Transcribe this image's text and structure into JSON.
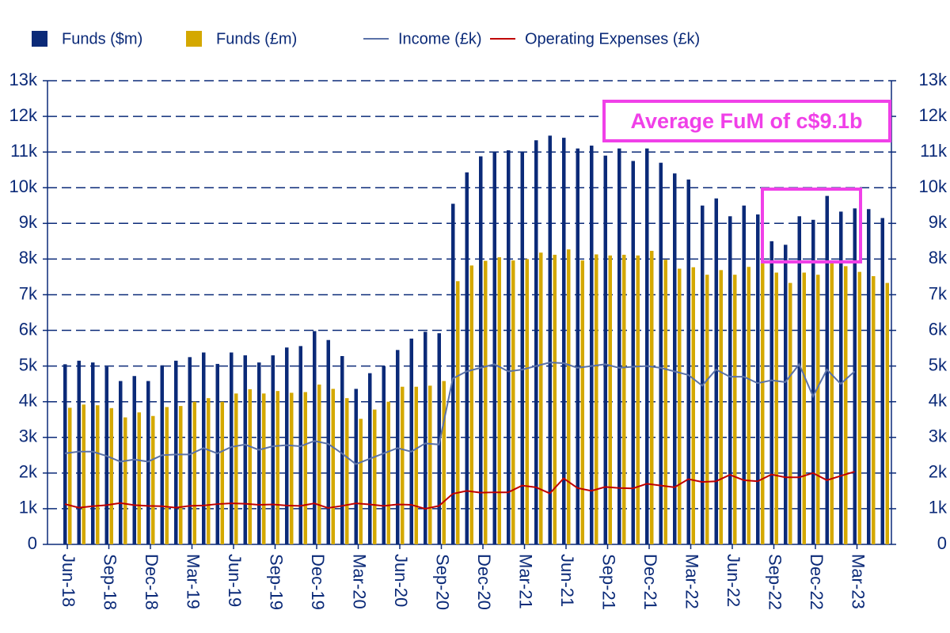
{
  "chart_data": {
    "type": "bar",
    "categories": [
      "Jun-18",
      null,
      null,
      "Sep-18",
      null,
      null,
      "Dec-18",
      null,
      null,
      "Mar-19",
      null,
      null,
      "Jun-19",
      null,
      null,
      "Sep-19",
      null,
      null,
      "Dec-19",
      null,
      null,
      "Mar-20",
      null,
      null,
      "Jun-20",
      null,
      null,
      "Sep-20",
      null,
      null,
      "Dec-20",
      null,
      null,
      "Mar-21",
      null,
      null,
      "Jun-21",
      null,
      null,
      "Sep-21",
      null,
      null,
      "Dec-21",
      null,
      null,
      "Mar-22",
      null,
      null,
      "Jun-22",
      null,
      null,
      "Sep-22",
      null,
      null,
      "Dec-22",
      null,
      null,
      "Mar-23",
      null,
      null
    ],
    "series": [
      {
        "name": "Funds ($m)",
        "color": "#0b2a78",
        "kind": "bar",
        "values": [
          5050,
          5150,
          5100,
          4980,
          4580,
          4720,
          4580,
          5020,
          5150,
          5250,
          5380,
          5060,
          5380,
          5300,
          5100,
          5300,
          5520,
          5560,
          5980,
          5730,
          5280,
          4360,
          4800,
          5000,
          5450,
          5770,
          5960,
          5920,
          9550,
          10430,
          10880,
          11000,
          11050,
          11000,
          11330,
          11460,
          11400,
          11100,
          11180,
          10900,
          11100,
          10750,
          11100,
          10700,
          10400,
          10230,
          9500,
          9700,
          9200,
          9500,
          9250,
          8500,
          8400,
          9200,
          9100,
          9770,
          9330,
          9420,
          9400,
          9150
        ]
      },
      {
        "name": "Funds (£m)",
        "color": "#d4a800",
        "kind": "bar",
        "values": [
          3830,
          3920,
          3900,
          3820,
          3560,
          3700,
          3600,
          3850,
          3880,
          4000,
          4100,
          4000,
          4230,
          4350,
          4230,
          4300,
          4250,
          4270,
          4480,
          4360,
          4100,
          3520,
          3780,
          4000,
          4420,
          4420,
          4450,
          4580,
          7380,
          7820,
          7950,
          8050,
          7960,
          8000,
          8180,
          8120,
          8270,
          7960,
          8130,
          8100,
          8120,
          8100,
          8230,
          7980,
          7730,
          7770,
          7560,
          7690,
          7560,
          7780,
          7950,
          7620,
          7330,
          7620,
          7560,
          7900,
          7800,
          7640,
          7520,
          7330
        ]
      },
      {
        "name": "Income (£k)",
        "color": "#5b72a8",
        "kind": "line",
        "values": [
          2550,
          2600,
          2600,
          2480,
          2320,
          2380,
          2320,
          2500,
          2520,
          2520,
          2700,
          2550,
          2730,
          2800,
          2650,
          2750,
          2780,
          2750,
          2900,
          2820,
          2550,
          2250,
          2400,
          2550,
          2700,
          2600,
          2830,
          2800,
          4650,
          4850,
          4950,
          5050,
          4850,
          4900,
          5000,
          5100,
          5080,
          4950,
          5000,
          5050,
          4950,
          4980,
          5000,
          4950,
          4850,
          4750,
          4450,
          4900,
          4700,
          4700,
          4520,
          4600,
          4550,
          5050,
          4150,
          4900,
          4500,
          4850,
          null,
          null
        ]
      },
      {
        "name": "Operating Expenses (£k)",
        "color": "#c00000",
        "kind": "line",
        "values": [
          1130,
          1030,
          1070,
          1100,
          1160,
          1100,
          1080,
          1070,
          1030,
          1080,
          1090,
          1130,
          1150,
          1140,
          1110,
          1120,
          1090,
          1080,
          1150,
          1020,
          1080,
          1150,
          1120,
          1080,
          1120,
          1110,
          1000,
          1080,
          1420,
          1500,
          1450,
          1460,
          1460,
          1650,
          1600,
          1430,
          1850,
          1580,
          1500,
          1610,
          1580,
          1570,
          1700,
          1650,
          1600,
          1830,
          1750,
          1770,
          1950,
          1800,
          1770,
          1960,
          1880,
          1880,
          2000,
          1800,
          1920,
          2040,
          null,
          null
        ]
      }
    ],
    "ylim": [
      0,
      13000
    ],
    "yticks": [
      0,
      {
        "value": 1000,
        "label": "1k"
      },
      {
        "value": 2000,
        "label": "2k"
      },
      {
        "value": 3000,
        "label": "3k"
      },
      {
        "value": 4000,
        "label": "4k"
      },
      {
        "value": 5000,
        "label": "5k"
      },
      {
        "value": 6000,
        "label": "6k"
      },
      {
        "value": 7000,
        "label": "7k"
      },
      {
        "value": 8000,
        "label": "8k"
      },
      {
        "value": 9000,
        "label": "9k"
      },
      {
        "value": 10000,
        "label": "10k"
      },
      {
        "value": 11000,
        "label": "11k"
      },
      {
        "value": 12000,
        "label": "12k"
      },
      {
        "value": 13000,
        "label": "13k"
      }
    ],
    "y2lim": [
      0,
      13000
    ],
    "y2ticks": [
      0,
      {
        "value": 1000,
        "label": "1k"
      },
      {
        "value": 2000,
        "label": "2k"
      },
      {
        "value": 3000,
        "label": "3k"
      },
      {
        "value": 4000,
        "label": "4k"
      },
      {
        "value": 5000,
        "label": "5k"
      },
      {
        "value": 6000,
        "label": "6k"
      },
      {
        "value": 7000,
        "label": "7k"
      },
      {
        "value": 8000,
        "label": "8k"
      },
      {
        "value": 9000,
        "label": "9k"
      },
      {
        "value": 10000,
        "label": "10k"
      },
      {
        "value": 11000,
        "label": "11k"
      },
      {
        "value": 12000,
        "label": "12k"
      },
      {
        "value": 13000,
        "label": "13k"
      }
    ],
    "grid": true,
    "legend": "top",
    "annotations": [
      "Average FuM of c$9.1b"
    ]
  }
}
